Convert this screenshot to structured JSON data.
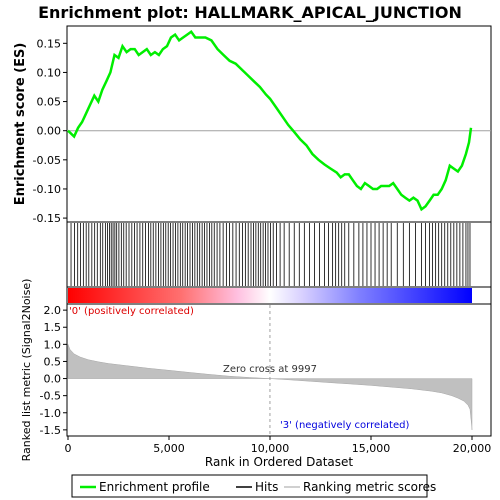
{
  "chart_data": {
    "type": "line",
    "title": "Enrichment plot: HALLMARK_APICAL_JUNCTION",
    "xlabel": "Rank in Ordered Dataset",
    "x_ticks": [
      "0",
      "5,000",
      "10,000",
      "15,000",
      "20,000"
    ],
    "x_tick_values": [
      0,
      5000,
      10000,
      15000,
      20000
    ],
    "xlim": [
      0,
      20000
    ],
    "legend": {
      "placement": "bottom",
      "entries": [
        "Enrichment profile",
        "Hits",
        "Ranking metric scores"
      ]
    },
    "colors": {
      "enrichment": "#00ee00",
      "hits": "#000000",
      "metric_fill": "#c0c0c0",
      "positive": "#ff0000",
      "negative": "#0000ff",
      "zero_line": "#a0a0a0"
    },
    "es_panel": {
      "ylabel": "Enrichment score (ES)",
      "yticks": [
        "0.15",
        "0.10",
        "0.05",
        "0.00",
        "-0.05",
        "-0.10",
        "-0.15"
      ],
      "ytick_values": [
        0.15,
        0.1,
        0.05,
        0.0,
        -0.05,
        -0.1,
        -0.15
      ],
      "ylim": [
        -0.155,
        0.178
      ],
      "series": {
        "name": "Enrichment profile",
        "x": [
          0,
          300,
          500,
          700,
          900,
          1100,
          1300,
          1500,
          1700,
          1900,
          2100,
          2300,
          2500,
          2700,
          2900,
          3100,
          3300,
          3500,
          3700,
          3900,
          4100,
          4300,
          4500,
          4700,
          4900,
          5100,
          5300,
          5500,
          5700,
          5900,
          6100,
          6300,
          6500,
          6800,
          7100,
          7400,
          7700,
          8000,
          8300,
          8600,
          8900,
          9200,
          9500,
          9800,
          10000,
          10300,
          10600,
          10900,
          11200,
          11500,
          11800,
          12100,
          12400,
          12700,
          13000,
          13300,
          13500,
          13700,
          13900,
          14100,
          14300,
          14500,
          14700,
          14900,
          15100,
          15300,
          15500,
          15700,
          15900,
          16100,
          16300,
          16500,
          16700,
          16900,
          17100,
          17300,
          17500,
          17700,
          17900,
          18100,
          18300,
          18500,
          18700,
          18900,
          19100,
          19300,
          19500,
          19700,
          19850,
          19950
        ],
        "y": [
          0.0,
          -0.01,
          0.005,
          0.015,
          0.03,
          0.045,
          0.06,
          0.05,
          0.07,
          0.085,
          0.1,
          0.13,
          0.125,
          0.145,
          0.135,
          0.14,
          0.14,
          0.13,
          0.135,
          0.14,
          0.13,
          0.135,
          0.13,
          0.14,
          0.145,
          0.16,
          0.165,
          0.155,
          0.16,
          0.165,
          0.17,
          0.16,
          0.16,
          0.16,
          0.155,
          0.14,
          0.13,
          0.12,
          0.115,
          0.105,
          0.095,
          0.085,
          0.075,
          0.062,
          0.055,
          0.04,
          0.025,
          0.01,
          -0.002,
          -0.015,
          -0.025,
          -0.04,
          -0.05,
          -0.058,
          -0.065,
          -0.072,
          -0.08,
          -0.075,
          -0.075,
          -0.085,
          -0.095,
          -0.1,
          -0.09,
          -0.095,
          -0.1,
          -0.1,
          -0.095,
          -0.095,
          -0.095,
          -0.09,
          -0.1,
          -0.11,
          -0.115,
          -0.12,
          -0.115,
          -0.12,
          -0.135,
          -0.13,
          -0.12,
          -0.11,
          -0.11,
          -0.1,
          -0.085,
          -0.06,
          -0.065,
          -0.07,
          -0.06,
          -0.04,
          -0.02,
          0.005
        ]
      }
    },
    "hits_panel": {
      "hits": [
        150,
        320,
        480,
        620,
        760,
        900,
        1030,
        1180,
        1320,
        1450,
        1600,
        1720,
        1850,
        1960,
        2050,
        2140,
        2230,
        2320,
        2410,
        2520,
        2640,
        2760,
        2880,
        3020,
        3160,
        3290,
        3420,
        3560,
        3700,
        3840,
        3980,
        4100,
        4220,
        4350,
        4480,
        4600,
        4720,
        4840,
        4960,
        5080,
        5200,
        5320,
        5440,
        5560,
        5680,
        5800,
        5920,
        6040,
        6160,
        6280,
        6400,
        6520,
        6640,
        6760,
        6880,
        7000,
        7120,
        7240,
        7380,
        7520,
        7680,
        7840,
        8000,
        8160,
        8320,
        8480,
        8640,
        8780,
        8920,
        9060,
        9180,
        9300,
        9420,
        9540,
        9660,
        9780,
        9900,
        10020,
        10160,
        10320,
        10500,
        10700,
        10950,
        11200,
        11450,
        11700,
        11950,
        12200,
        12450,
        12700,
        12900,
        13100,
        13250,
        13400,
        13550,
        13700,
        13900,
        14150,
        14400,
        14600,
        14800,
        15000,
        15200,
        15400,
        15600,
        15800,
        16000,
        16300,
        16600,
        16900,
        17200,
        17500,
        17700,
        17900,
        18050,
        18200,
        18350,
        18500,
        18650,
        18800,
        18950,
        19100,
        19250,
        19400,
        19550,
        19700,
        19800,
        19900
      ]
    },
    "metric_panel": {
      "ylabel": "Ranked list metric (Signal2Noise)",
      "yticks": [
        "2.0",
        "1.5",
        "1.0",
        "0.5",
        "0.0",
        "-0.5",
        "-1.0",
        "-1.5"
      ],
      "ytick_values": [
        2.0,
        1.5,
        1.0,
        0.5,
        0.0,
        -0.5,
        -1.0,
        -1.5
      ],
      "ylim": [
        -1.65,
        2.15
      ],
      "profile": {
        "x": [
          0,
          100,
          300,
          600,
          1000,
          1500,
          2000,
          3000,
          4000,
          5000,
          6000,
          7000,
          8000,
          9000,
          9997,
          11000,
          12000,
          13000,
          14000,
          15000,
          16000,
          17000,
          18000,
          18500,
          19000,
          19300,
          19600,
          19800,
          19900,
          19970,
          20000
        ],
        "y": [
          1.0,
          0.85,
          0.72,
          0.63,
          0.55,
          0.49,
          0.44,
          0.37,
          0.3,
          0.24,
          0.18,
          0.12,
          0.07,
          0.03,
          0.0,
          -0.04,
          -0.08,
          -0.12,
          -0.16,
          -0.2,
          -0.25,
          -0.3,
          -0.37,
          -0.42,
          -0.5,
          -0.57,
          -0.66,
          -0.78,
          -0.9,
          -1.3,
          -1.5
        ]
      },
      "zero_cross_label": "Zero cross at 9997",
      "zero_cross_value": 9997,
      "positive_label": "'0' (positively correlated)",
      "negative_label": "'3' (negatively correlated)"
    }
  }
}
